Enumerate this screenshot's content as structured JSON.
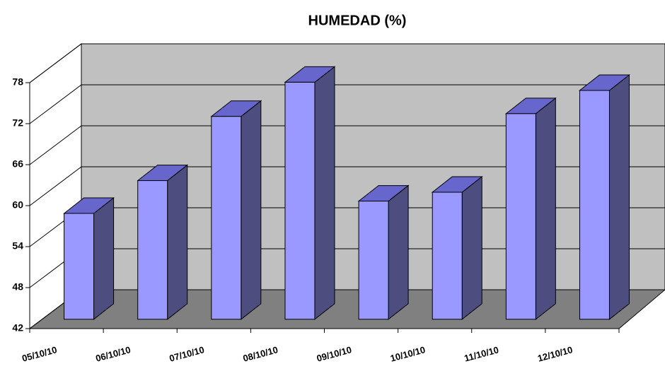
{
  "chart_data": {
    "type": "bar3d",
    "title": "HUMEDAD (%)",
    "categories": [
      "05/10/10",
      "06/10/10",
      "07/10/10",
      "08/10/10",
      "09/10/10",
      "10/10/10",
      "11/10/10",
      "12/10/10"
    ],
    "values": [
      57.5,
      62.3,
      71.7,
      76.7,
      59.3,
      60.6,
      72.1,
      75.5
    ],
    "color": "#9999ff",
    "ylim": [
      42,
      78
    ],
    "yticks": [
      42,
      48,
      54,
      60,
      66,
      72,
      78
    ],
    "grid": true
  }
}
